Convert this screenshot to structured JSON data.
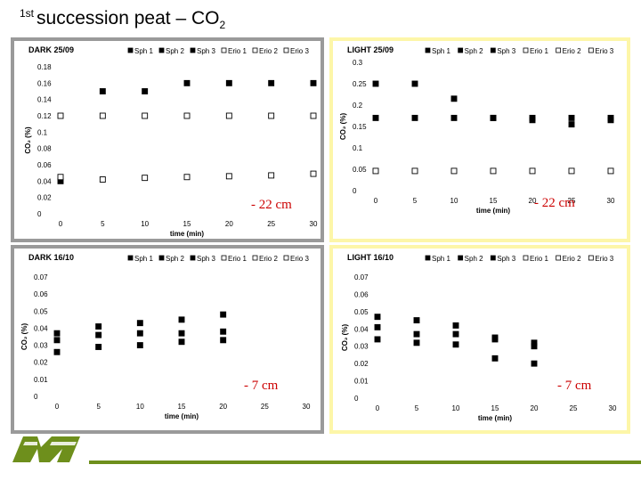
{
  "slide": {
    "title_sup": "1st",
    "title_text": "succession peat – CO",
    "title_sub": "2"
  },
  "colors": {
    "gray_frame": "#9a9a9a",
    "yellow_frame": "#fdf6a8",
    "marker": "#000000",
    "annotation": "#cc0000",
    "logo_green": "#6e8f1c"
  },
  "chart_data": [
    {
      "id": "dark-2509",
      "type": "scatter",
      "title": "DARK 25/09",
      "xlabel": "time (min)",
      "ylabel": "CO₂ (%)",
      "xlim": [
        0,
        30
      ],
      "xticks": [
        "0",
        "5",
        "10",
        "15",
        "20",
        "25",
        "30"
      ],
      "ylim": [
        0,
        0.18
      ],
      "yticks": [
        "0",
        "0.02",
        "0.04",
        "0.06",
        "0.08",
        "0.1",
        "0.12",
        "0.14",
        "0.16",
        "0.18"
      ],
      "legend": [
        "Sph 1",
        "Sph 2",
        "Sph 3",
        "Erio 1",
        "Erio 2",
        "Erio 3"
      ],
      "annotation": "- 22 cm",
      "series": [
        {
          "name": "Sph 1",
          "marker": "filled",
          "x": [
            0,
            5,
            10,
            15,
            20,
            25,
            30
          ],
          "y": [
            0.04,
            0.15,
            0.15,
            0.16,
            0.16,
            0.16,
            0.16
          ]
        },
        {
          "name": "Erio 1",
          "marker": "open",
          "x": [
            0,
            5,
            10,
            15,
            20,
            25,
            30
          ],
          "y": [
            0.12,
            0.12,
            0.12,
            0.12,
            0.12,
            0.12,
            0.12
          ]
        },
        {
          "name": "Erio 2",
          "marker": "open",
          "x": [
            0,
            5,
            10,
            15,
            20,
            25,
            30
          ],
          "y": [
            0.045,
            0.042,
            0.044,
            0.045,
            0.046,
            0.047,
            0.049
          ]
        }
      ]
    },
    {
      "id": "light-2509",
      "type": "scatter",
      "title": "LIGHT 25/09",
      "xlabel": "time (min)",
      "ylabel": "CO₂ (%)",
      "xlim": [
        0,
        30
      ],
      "xticks": [
        "0",
        "5",
        "10",
        "15",
        "20",
        "25",
        "30"
      ],
      "ylim": [
        0,
        0.3
      ],
      "yticks": [
        "0",
        "0.05",
        "0.1",
        "0.15",
        "0.2",
        "0.25",
        "0.3"
      ],
      "legend": [
        "Sph 1",
        "Sph 2",
        "Sph 3",
        "Erio 1",
        "Erio 2",
        "Erio 3"
      ],
      "annotation": "- 22 cm",
      "series": [
        {
          "name": "Sph 1",
          "marker": "filled",
          "x": [
            0,
            5,
            10,
            15,
            20,
            25,
            30
          ],
          "y": [
            0.25,
            0.25,
            0.215,
            0.17,
            0.17,
            0.17,
            0.17
          ]
        },
        {
          "name": "Sph 2",
          "marker": "filled",
          "x": [
            0,
            5,
            10,
            15,
            20,
            25,
            30
          ],
          "y": [
            0.17,
            0.17,
            0.17,
            0.17,
            0.165,
            0.155,
            0.165
          ]
        },
        {
          "name": "Erio 1",
          "marker": "open",
          "x": [
            0,
            5,
            10,
            15,
            20,
            25,
            30
          ],
          "y": [
            0.046,
            0.046,
            0.046,
            0.046,
            0.046,
            0.046,
            0.046
          ]
        }
      ]
    },
    {
      "id": "dark-1610",
      "type": "scatter",
      "title": "DARK 16/10",
      "xlabel": "time (min)",
      "ylabel": "CO₂ (%)",
      "xlim": [
        0,
        30
      ],
      "xticks": [
        "0",
        "5",
        "10",
        "15",
        "20",
        "25",
        "30"
      ],
      "ylim": [
        0,
        0.07
      ],
      "yticks": [
        "0",
        "0.01",
        "0.02",
        "0.03",
        "0.04",
        "0.05",
        "0.06",
        "0.07"
      ],
      "legend": [
        "Sph 1",
        "Sph 2",
        "Sph 3",
        "Erio 1",
        "Erio 2",
        "Erio 3"
      ],
      "annotation": "- 7 cm",
      "series": [
        {
          "name": "Sph 1",
          "marker": "filled",
          "x": [
            0,
            5,
            10,
            15,
            20
          ],
          "y": [
            0.037,
            0.041,
            0.043,
            0.045,
            0.048
          ]
        },
        {
          "name": "Sph 2",
          "marker": "filled",
          "x": [
            0,
            5,
            10,
            15,
            20
          ],
          "y": [
            0.033,
            0.036,
            0.037,
            0.037,
            0.038
          ]
        },
        {
          "name": "Sph 3",
          "marker": "filled",
          "x": [
            0,
            5,
            10,
            15,
            20
          ],
          "y": [
            0.026,
            0.029,
            0.03,
            0.032,
            0.033
          ]
        }
      ]
    },
    {
      "id": "light-1610",
      "type": "scatter",
      "title": "LIGHT 16/10",
      "xlabel": "time (min)",
      "ylabel": "CO₂ (%)",
      "xlim": [
        0,
        30
      ],
      "xticks": [
        "0",
        "5",
        "10",
        "15",
        "20",
        "25",
        "30"
      ],
      "ylim": [
        0,
        0.07
      ],
      "yticks": [
        "0",
        "0.01",
        "0.02",
        "0.03",
        "0.04",
        "0.05",
        "0.06",
        "0.07"
      ],
      "legend": [
        "Sph 1",
        "Sph 2",
        "Sph 3",
        "Erio 1",
        "Erio 2",
        "Erio 3"
      ],
      "annotation": "- 7 cm",
      "series": [
        {
          "name": "Sph 1",
          "marker": "filled",
          "x": [
            0,
            5,
            10,
            15,
            20
          ],
          "y": [
            0.047,
            0.045,
            0.042,
            0.035,
            0.032
          ]
        },
        {
          "name": "Sph 2",
          "marker": "filled",
          "x": [
            0,
            5,
            10,
            15,
            20
          ],
          "y": [
            0.041,
            0.037,
            0.037,
            0.034,
            0.03
          ]
        },
        {
          "name": "Sph 3",
          "marker": "filled",
          "x": [
            0,
            5,
            10,
            15,
            20
          ],
          "y": [
            0.034,
            0.032,
            0.031,
            0.023,
            0.02
          ]
        }
      ]
    }
  ]
}
